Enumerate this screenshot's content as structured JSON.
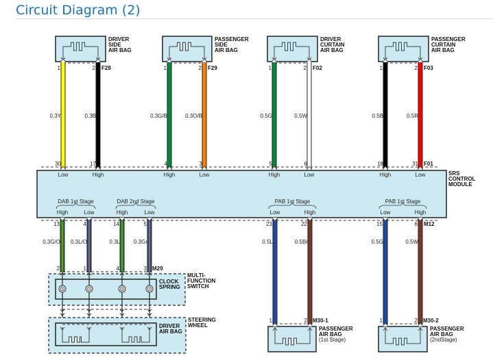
{
  "title": "Circuit Diagram (2)",
  "colors": {
    "box_fill": "#cde9f2",
    "title": "#1b72bd"
  },
  "top_connectors": [
    {
      "name": [
        "DRIVER",
        "SIDE",
        "AIR BAG"
      ],
      "connector": "F28",
      "pins": [
        "1",
        "2"
      ],
      "wires": [
        {
          "spec": "0.3Y",
          "color": "#ffff00",
          "module_pin": "30",
          "signal": "Low"
        },
        {
          "spec": "0.3B",
          "color": "#000000",
          "module_pin": "17",
          "signal": "High"
        }
      ]
    },
    {
      "name": [
        "PASSENGER",
        "SIDE",
        "AIR BAG"
      ],
      "connector": "F29",
      "pins": [
        "1",
        "2"
      ],
      "wires": [
        {
          "spec": "0.3G/B",
          "color": "#008a3a",
          "module_pin": "4",
          "signal": "High"
        },
        {
          "spec": "0.3O/B",
          "color": "#ff7f00",
          "module_pin": "3",
          "signal": "Low"
        }
      ]
    },
    {
      "name": [
        "DRIVER",
        "CURTAIN",
        "AIR BAG"
      ],
      "connector": "F02",
      "pins": [
        "1",
        "2"
      ],
      "wires": [
        {
          "spec": "0.5G",
          "color": "#008a3a",
          "module_pin": "5",
          "signal": "High"
        },
        {
          "spec": "0.5W",
          "color": "#ffffff",
          "module_pin": "6",
          "signal": "Low"
        }
      ]
    },
    {
      "name": [
        "PASSENGER",
        "CURTAIN",
        "AIR BAG"
      ],
      "connector": "F03",
      "pins": [
        "1",
        "2"
      ],
      "wires": [
        {
          "spec": "0.5B",
          "color": "#000000",
          "module_pin": "18",
          "signal": "High"
        },
        {
          "spec": "0.5R",
          "color": "#ff0000",
          "module_pin": "31",
          "signal": "Low"
        }
      ]
    }
  ],
  "module": {
    "name": [
      "SRS",
      "CONTROL",
      "MODULE"
    ],
    "top_connector": "F01",
    "bottom_connector": "M12"
  },
  "bottom_groups": [
    {
      "stage": "DAB 1st Stage",
      "wires": [
        {
          "signal": "High",
          "module_pin": "13",
          "spec": "0.3G/O",
          "color": "#008a3a",
          "stripe": "#ff7f00",
          "end_pin": "2"
        },
        {
          "signal": "Low",
          "module_pin": "4",
          "spec": "0.3L/O",
          "color": "#1d4aa8",
          "stripe": "#ff7f00",
          "end_pin": "1"
        }
      ]
    },
    {
      "stage": "DAB 2nd Stage",
      "wires": [
        {
          "signal": "High",
          "module_pin": "14",
          "spec": "0.3L",
          "color": "#008a3a",
          "stripe": "#ff7f00",
          "end_pin": "4"
        },
        {
          "signal": "Low",
          "module_pin": "5",
          "spec": "0.3Gr",
          "color": "#1d4aa8",
          "stripe": "#ff7f00",
          "end_pin": "3"
        }
      ]
    },
    {
      "stage": "PAB 1st Stage",
      "wires": [
        {
          "signal": "Low",
          "module_pin": "23",
          "spec": "0.5L",
          "color": "#1d4aa8",
          "end_pin": "1"
        },
        {
          "signal": "High",
          "module_pin": "22",
          "spec": "0.5Br",
          "color": "#7a3a22",
          "end_pin": "2"
        }
      ]
    },
    {
      "stage": "PAB 1st Stage",
      "wires": [
        {
          "signal": "Low",
          "module_pin": "15",
          "spec": "0.5G",
          "color": "#1d4aa8",
          "end_pin": "1"
        },
        {
          "signal": "High",
          "module_pin": "6",
          "spec": "0.5W",
          "color": "#7a3a22",
          "end_pin": "2"
        }
      ]
    }
  ],
  "dab_connector": "M29",
  "multi_function_switch": [
    "MULTI-",
    "FUNCTION",
    "SWITCH"
  ],
  "clock_spring": [
    "CLOCK",
    "SPRING"
  ],
  "steering_wheel": [
    "STEERING",
    "WHEEL"
  ],
  "driver_air_bag": [
    "DRIVER",
    "AIR BAG"
  ],
  "passenger_air_bags": [
    {
      "connector": "M30-1",
      "name": [
        "PASSENGER",
        "AIR BAG",
        "(1st Stage)"
      ]
    },
    {
      "connector": "M30-2",
      "name": [
        "PASSENGER",
        "AIR BAG",
        "(2ndStage)"
      ]
    }
  ]
}
